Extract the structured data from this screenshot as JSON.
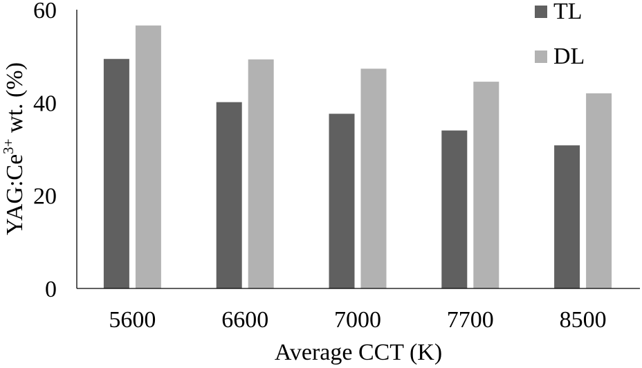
{
  "chart_data": {
    "type": "bar",
    "title": "",
    "xlabel": "Average CCT (K)",
    "ylabel_parts": {
      "base": "YAG:Ce",
      "sup": "3+",
      "rest": " wt. (%)"
    },
    "categories": [
      "5600",
      "6600",
      "7000",
      "7700",
      "8500"
    ],
    "series": [
      {
        "name": "TL",
        "color": "#606060",
        "values": [
          49.4,
          40.1,
          37.6,
          34.0,
          30.8
        ]
      },
      {
        "name": "DL",
        "color": "#b2b2b2",
        "values": [
          56.6,
          49.3,
          47.3,
          44.5,
          42.0
        ]
      }
    ],
    "ylim": [
      0,
      60
    ],
    "yticks": [
      0,
      20,
      40,
      60
    ],
    "grid": false,
    "legend": "top-right"
  }
}
